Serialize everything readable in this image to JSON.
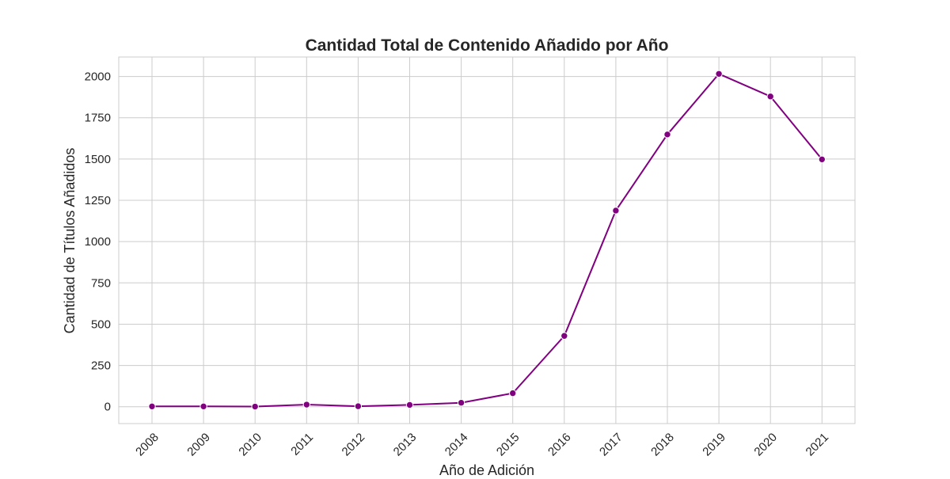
{
  "chart_data": {
    "type": "line",
    "title": "Cantidad Total de Contenido Añadido por Año",
    "xlabel": "Año de Adición",
    "ylabel": "Cantidad de Títulos Añadidos",
    "x": [
      "2008",
      "2009",
      "2010",
      "2011",
      "2012",
      "2013",
      "2014",
      "2015",
      "2016",
      "2017",
      "2018",
      "2019",
      "2020",
      "2021"
    ],
    "series": [
      {
        "values": [
          2,
          2,
          1,
          13,
          3,
          11,
          24,
          82,
          429,
          1188,
          1649,
          2016,
          1879,
          1498
        ],
        "color": "#800080",
        "marker": "circle"
      }
    ],
    "yticks": [
      0,
      250,
      500,
      750,
      1000,
      1250,
      1500,
      1750,
      2000
    ],
    "ylim": [
      -102,
      2118
    ],
    "grid": true,
    "legend": "none",
    "colors": {
      "line": "#800080",
      "grid": "#cccccc",
      "frame": "#cccccc",
      "text": "#262626"
    }
  }
}
